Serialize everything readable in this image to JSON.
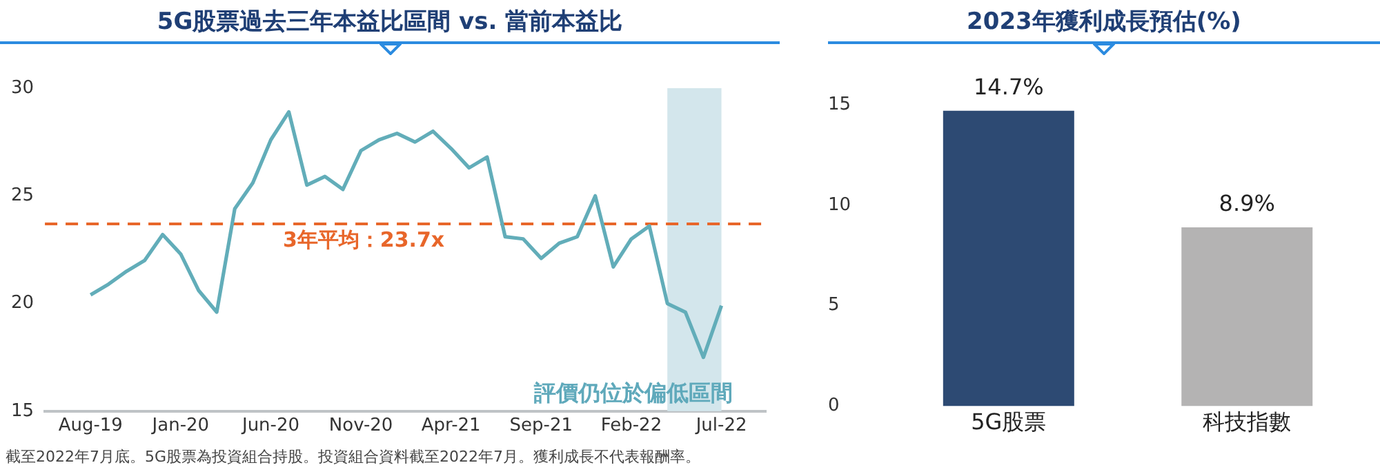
{
  "chart_data": [
    {
      "type": "line",
      "title": "5G股票過去三年本益比區間 vs. 當前本益比",
      "x": [
        "2019-08",
        "2019-09",
        "2019-10",
        "2019-11",
        "2019-12",
        "2020-01",
        "2020-02",
        "2020-03",
        "2020-04",
        "2020-05",
        "2020-06",
        "2020-07",
        "2020-08",
        "2020-09",
        "2020-10",
        "2020-11",
        "2020-12",
        "2021-01",
        "2021-02",
        "2021-03",
        "2021-04",
        "2021-05",
        "2021-06",
        "2021-07",
        "2021-08",
        "2021-09",
        "2021-10",
        "2021-11",
        "2021-12",
        "2022-01",
        "2022-02",
        "2022-03",
        "2022-04",
        "2022-05",
        "2022-06",
        "2022-07"
      ],
      "series": [
        {
          "color": "#62adb9",
          "values": [
            20.4,
            20.9,
            21.5,
            22.0,
            23.2,
            22.3,
            20.6,
            19.6,
            24.4,
            25.6,
            27.6,
            28.9,
            25.5,
            25.9,
            25.3,
            27.1,
            27.6,
            27.9,
            27.5,
            28.0,
            27.2,
            26.3,
            26.8,
            23.1,
            23.0,
            22.1,
            22.8,
            23.1,
            25.0,
            21.7,
            23.0,
            23.6,
            20.0,
            19.6,
            17.5,
            19.9
          ]
        }
      ],
      "xlim": [
        "2019-05-15",
        "2022-09-15"
      ],
      "xticks": [
        {
          "value": "2019-08",
          "label": "Aug-19"
        },
        {
          "value": "2020-01",
          "label": "Jan-20"
        },
        {
          "value": "2020-06",
          "label": "Jun-20"
        },
        {
          "value": "2020-11",
          "label": "Nov-20"
        },
        {
          "value": "2021-04",
          "label": "Apr-21"
        },
        {
          "value": "2021-09",
          "label": "Sep-21"
        },
        {
          "value": "2022-02",
          "label": "Feb-22"
        },
        {
          "value": "2022-07",
          "label": "Jul-22"
        }
      ],
      "ylim": [
        15,
        30
      ],
      "yticks": [
        15,
        20,
        25,
        30
      ],
      "ref_lines": [
        {
          "axis": "y",
          "value": 23.7,
          "label": "3年平均：23.7x",
          "color": "#e8662a",
          "line_style": "dashed"
        }
      ],
      "bands": [
        {
          "axis": "x",
          "from": "2022-04",
          "to": "2022-07",
          "label": "評價仍位於偏低區間",
          "color": "#d3e6ec"
        }
      ],
      "grid": false,
      "legend": false,
      "marker": "none",
      "line_style": "solid",
      "annotations": [
        "截至2022年7月底。5G股票為投資組合持股。投資組合資料截至2022年7月。獲利成長不代表報酬率。"
      ]
    },
    {
      "type": "bar",
      "title": "2023年獲利成長預估(%)",
      "categories": [
        "5G股票",
        "科技指數"
      ],
      "values": [
        14.7,
        8.9
      ],
      "colors": [
        "#2d4a73",
        "#b4b3b3"
      ],
      "value_labels": [
        "14.7%",
        "8.9%"
      ],
      "ylim": [
        0,
        15
      ],
      "yticks": [
        0,
        5,
        10,
        15
      ],
      "grid": false,
      "legend": false
    }
  ]
}
